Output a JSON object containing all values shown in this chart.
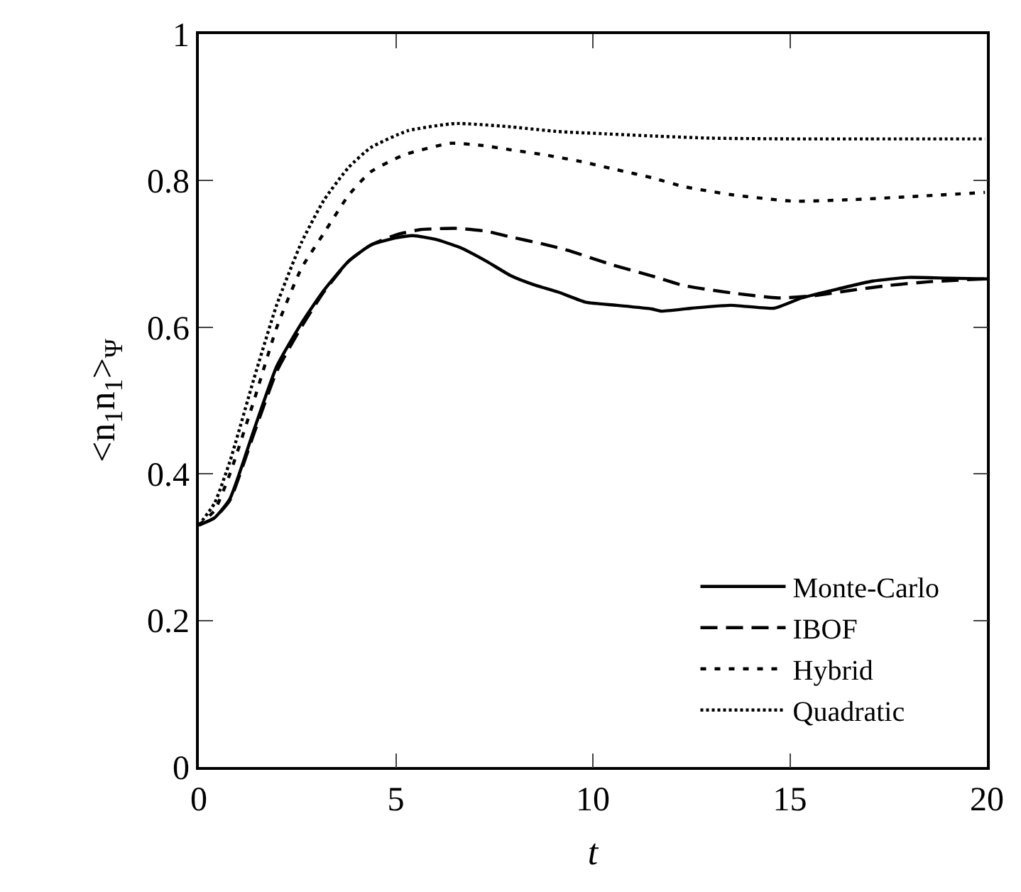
{
  "chart_data": {
    "type": "line",
    "xlabel": "t",
    "ylabel": "<n$_{1}$n$_{1}$>$_{Ψ}$",
    "xlim": [
      0,
      20
    ],
    "ylim": [
      0,
      1
    ],
    "xticks": [
      0,
      5,
      10,
      15,
      20
    ],
    "yticks": [
      0,
      0.2,
      0.4,
      0.6,
      0.8,
      1
    ],
    "legend": "bottom right",
    "grid": false,
    "series": [
      {
        "name": "Monte-Carlo",
        "color": "#000000",
        "line_style": "solid",
        "x": [
          0,
          0.4,
          0.79,
          1.4,
          1.98,
          2.6,
          3.17,
          3.8,
          4.36,
          5.0,
          5.43,
          6.0,
          6.62,
          7.3,
          7.93,
          8.5,
          9.12,
          9.83,
          10.6,
          11.5,
          11.74,
          12.5,
          13.5,
          14.6,
          15.3,
          16.2,
          17.1,
          18,
          19,
          20
        ],
        "values": [
          0.33,
          0.34,
          0.366,
          0.46,
          0.547,
          0.605,
          0.65,
          0.69,
          0.712,
          0.722,
          0.725,
          0.72,
          0.709,
          0.69,
          0.67,
          0.658,
          0.648,
          0.634,
          0.63,
          0.625,
          0.622,
          0.626,
          0.63,
          0.626,
          0.64,
          0.652,
          0.663,
          0.668,
          0.667,
          0.666
        ]
      },
      {
        "name": "IBOF",
        "color": "#000000",
        "line_style": "dashed",
        "x": [
          0,
          0.4,
          0.79,
          1.4,
          1.98,
          2.6,
          3.17,
          3.8,
          4.36,
          5.0,
          5.6,
          6.5,
          7.3,
          7.93,
          8.7,
          9.36,
          10.5,
          11.5,
          12.3,
          13.5,
          14.7,
          15.6,
          16.5,
          17.5,
          18.5,
          19.95
        ],
        "values": [
          0.33,
          0.34,
          0.364,
          0.455,
          0.54,
          0.6,
          0.648,
          0.69,
          0.712,
          0.726,
          0.733,
          0.735,
          0.731,
          0.723,
          0.714,
          0.705,
          0.685,
          0.67,
          0.657,
          0.647,
          0.64,
          0.643,
          0.65,
          0.657,
          0.662,
          0.666
        ]
      },
      {
        "name": "Hybrid",
        "color": "#000000",
        "line_style": "dashed",
        "x": [
          0,
          0.4,
          0.79,
          1.4,
          1.98,
          2.6,
          3.17,
          3.8,
          4.36,
          5.2,
          6.38,
          7.2,
          7.93,
          8.8,
          9.71,
          10.6,
          11.5,
          12.3,
          13.5,
          15.07,
          16.5,
          18,
          19.95
        ],
        "values": [
          0.33,
          0.35,
          0.4,
          0.5,
          0.6,
          0.68,
          0.728,
          0.78,
          0.812,
          0.835,
          0.851,
          0.848,
          0.842,
          0.835,
          0.826,
          0.815,
          0.804,
          0.792,
          0.781,
          0.772,
          0.774,
          0.778,
          0.784
        ]
      },
      {
        "name": "Quadratic",
        "color": "#000000",
        "line_style": "dotted",
        "x": [
          0,
          0.4,
          0.79,
          1.4,
          1.98,
          2.6,
          3.17,
          3.8,
          4.36,
          5.3,
          6.5,
          7.8,
          9.12,
          10.3,
          11.5,
          13,
          15,
          17,
          19.95
        ],
        "values": [
          0.33,
          0.36,
          0.417,
          0.53,
          0.631,
          0.715,
          0.773,
          0.818,
          0.845,
          0.868,
          0.878,
          0.874,
          0.867,
          0.864,
          0.861,
          0.858,
          0.857,
          0.857,
          0.857
        ]
      }
    ]
  }
}
